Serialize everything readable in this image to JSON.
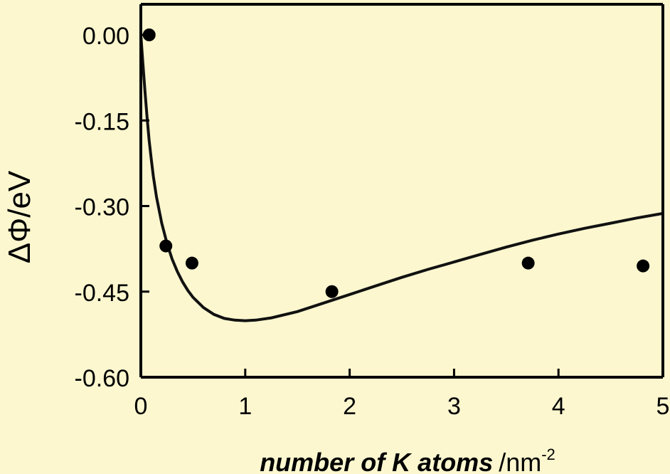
{
  "colors": {
    "background": "#fcf7cf",
    "plot_background": "#fcf7cf",
    "axis": "#000000",
    "marker": "#000000",
    "fit_line": "#111111"
  },
  "chart_data": {
    "type": "scatter",
    "title": "",
    "xlabel_main": "number of K atoms",
    "xlabel_unit": "/nm",
    "xlabel_unit_exponent": "-2",
    "ylabel": "ΔΦ/eV",
    "xlim": [
      0,
      5
    ],
    "ylim": [
      -0.6,
      0.0
    ],
    "x_tick_labels": [
      "0",
      "1",
      "2",
      "3",
      "4",
      "5"
    ],
    "y_tick_labels": [
      "0.00",
      "-0.15",
      "-0.30",
      "-0.45",
      "-0.60"
    ],
    "grid": false,
    "legend": "none",
    "series": [
      {
        "kind": "points",
        "x": [
          0.08,
          0.24,
          0.49,
          1.83,
          3.71,
          4.81
        ],
        "y": [
          0.0,
          -0.37,
          -0.4,
          -0.45,
          -0.4,
          -0.405
        ]
      },
      {
        "kind": "fit_curve",
        "x": [
          0,
          0.02,
          0.04,
          0.06,
          0.08,
          0.1,
          0.12,
          0.15,
          0.2,
          0.25,
          0.3,
          0.35,
          0.4,
          0.45,
          0.5,
          0.6,
          0.7,
          0.8,
          0.9,
          1.0,
          1.1,
          1.25,
          1.5,
          1.75,
          2.0,
          2.25,
          2.5,
          2.75,
          3.0,
          3.25,
          3.5,
          3.75,
          4.0,
          4.25,
          4.5,
          4.75,
          5.0
        ],
        "y": [
          0.0,
          -0.05,
          -0.1,
          -0.145,
          -0.185,
          -0.218,
          -0.248,
          -0.284,
          -0.33,
          -0.365,
          -0.393,
          -0.415,
          -0.433,
          -0.448,
          -0.46,
          -0.478,
          -0.49,
          -0.497,
          -0.5,
          -0.501,
          -0.5,
          -0.496,
          -0.485,
          -0.47,
          -0.455,
          -0.44,
          -0.425,
          -0.411,
          -0.398,
          -0.385,
          -0.372,
          -0.36,
          -0.349,
          -0.339,
          -0.33,
          -0.321,
          -0.313
        ]
      }
    ]
  }
}
